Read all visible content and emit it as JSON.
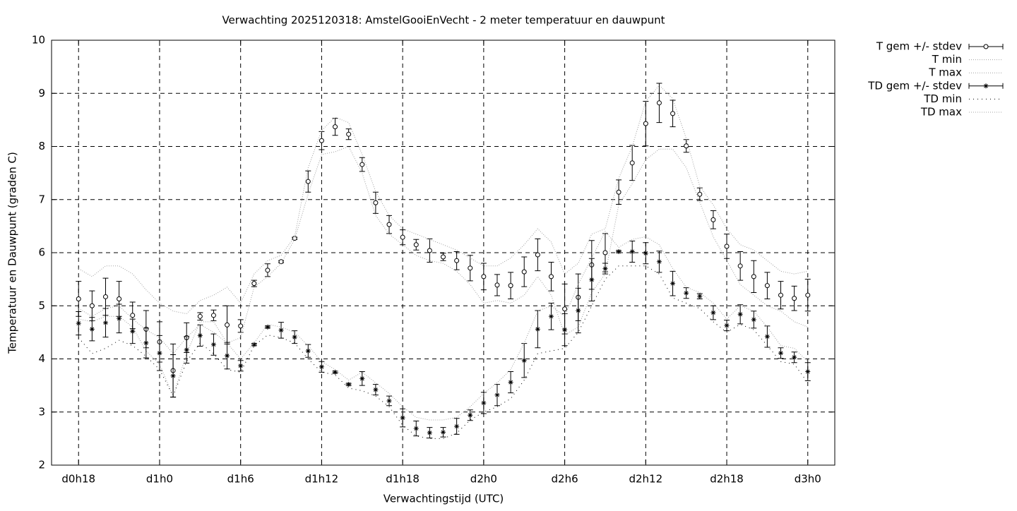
{
  "chart_data": {
    "type": "errorbar-line",
    "title": "Verwachting 2025120318: AmstelGooiEnVecht - 2 meter temperatuur en dauwpunt",
    "x_label": "Verwachtingstijd (UTC)",
    "y_label": "Temperatuur en Dauwpunt (graden C)",
    "xlim": [
      -2,
      56
    ],
    "xticks": [
      {
        "value": 0,
        "label": "d0h18"
      },
      {
        "value": 6,
        "label": "d1h0"
      },
      {
        "value": 12,
        "label": "d1h6"
      },
      {
        "value": 18,
        "label": "d1h12"
      },
      {
        "value": 24,
        "label": "d1h18"
      },
      {
        "value": 30,
        "label": "d2h0"
      },
      {
        "value": 36,
        "label": "d2h6"
      },
      {
        "value": 42,
        "label": "d2h12"
      },
      {
        "value": 48,
        "label": "d2h18"
      },
      {
        "value": 54,
        "label": "d3h0"
      }
    ],
    "ylim": [
      2,
      10
    ],
    "yticks": [
      2,
      3,
      4,
      5,
      6,
      7,
      8,
      9,
      10
    ],
    "grid": true,
    "legend": "outside-top-right",
    "x": [
      0,
      1,
      2,
      3,
      4,
      5,
      6,
      7,
      8,
      9,
      10,
      11,
      12,
      13,
      14,
      15,
      16,
      17,
      18,
      19,
      20,
      21,
      22,
      23,
      24,
      25,
      26,
      27,
      28,
      29,
      30,
      31,
      32,
      33,
      34,
      35,
      36,
      37,
      38,
      39,
      40,
      41,
      42,
      43,
      44,
      45,
      46,
      47,
      48,
      49,
      50,
      51,
      52,
      53,
      54
    ],
    "series": [
      {
        "name": "T gem +/- stdev",
        "color": "#000000",
        "marker": "circle",
        "line_style": "errorbar",
        "values": [
          5.13,
          5.0,
          5.17,
          5.13,
          4.82,
          4.56,
          4.32,
          3.78,
          4.4,
          4.8,
          4.82,
          4.64,
          4.62,
          5.42,
          5.67,
          5.83,
          6.27,
          7.34,
          8.11,
          8.37,
          8.23,
          7.66,
          6.94,
          6.53,
          6.29,
          6.15,
          6.04,
          5.92,
          5.85,
          5.71,
          5.55,
          5.39,
          5.38,
          5.64,
          5.96,
          5.55,
          4.94,
          5.16,
          5.77,
          6.0,
          7.14,
          7.69,
          8.43,
          8.82,
          8.62,
          8.01,
          7.1,
          6.62,
          6.12,
          5.75,
          5.55,
          5.38,
          5.2,
          5.14,
          5.2
        ],
        "errors": [
          0.33,
          0.28,
          0.35,
          0.33,
          0.25,
          0.35,
          0.38,
          0.5,
          0.28,
          0.07,
          0.1,
          0.36,
          0.12,
          0.06,
          0.12,
          0.02,
          0.02,
          0.2,
          0.17,
          0.16,
          0.1,
          0.13,
          0.2,
          0.17,
          0.14,
          0.1,
          0.22,
          0.07,
          0.17,
          0.24,
          0.25,
          0.2,
          0.25,
          0.28,
          0.3,
          0.27,
          0.47,
          0.44,
          0.46,
          0.36,
          0.23,
          0.33,
          0.42,
          0.37,
          0.25,
          0.12,
          0.12,
          0.17,
          0.23,
          0.27,
          0.3,
          0.25,
          0.26,
          0.23,
          0.3
        ]
      },
      {
        "name": "T min",
        "color": "#a0a0a0",
        "marker": "none",
        "line_style": "dotted",
        "values": [
          4.75,
          4.7,
          4.8,
          4.8,
          4.6,
          4.15,
          3.9,
          3.3,
          4.1,
          4.7,
          4.7,
          4.3,
          4.4,
          5.35,
          5.55,
          5.8,
          6.25,
          7.1,
          7.85,
          7.9,
          8.0,
          7.5,
          6.7,
          6.35,
          6.15,
          5.95,
          5.85,
          5.8,
          5.65,
          5.4,
          5.05,
          5.1,
          5.05,
          5.2,
          5.55,
          5.2,
          4.45,
          4.6,
          5.25,
          5.6,
          6.9,
          7.3,
          7.75,
          7.95,
          7.95,
          7.6,
          6.95,
          6.3,
          5.85,
          5.4,
          5.2,
          5.0,
          4.9,
          4.7,
          4.6
        ]
      },
      {
        "name": "T max",
        "color": "#a0a0a0",
        "marker": "none",
        "line_style": "dotted",
        "values": [
          5.7,
          5.55,
          5.75,
          5.75,
          5.6,
          5.3,
          5.05,
          4.9,
          4.85,
          5.1,
          5.2,
          5.35,
          5.05,
          5.6,
          5.85,
          5.95,
          6.3,
          7.6,
          8.3,
          8.55,
          8.45,
          7.85,
          7.15,
          6.7,
          6.45,
          6.35,
          6.25,
          6.15,
          6.05,
          5.9,
          5.75,
          5.75,
          5.9,
          6.15,
          6.45,
          6.2,
          5.6,
          5.8,
          6.35,
          6.45,
          7.4,
          8.0,
          8.85,
          9.15,
          8.9,
          8.15,
          7.25,
          6.9,
          6.45,
          6.15,
          6.05,
          5.85,
          5.65,
          5.6,
          5.65
        ]
      },
      {
        "name": "TD gem +/- stdev",
        "color": "#000000",
        "marker": "star",
        "line_style": "errorbar",
        "values": [
          4.67,
          4.56,
          4.68,
          4.76,
          4.52,
          4.3,
          4.11,
          3.68,
          4.17,
          4.44,
          4.27,
          4.06,
          3.87,
          4.27,
          4.6,
          4.54,
          4.41,
          4.15,
          3.85,
          3.75,
          3.52,
          3.63,
          3.42,
          3.21,
          2.89,
          2.69,
          2.61,
          2.62,
          2.73,
          2.94,
          3.17,
          3.32,
          3.56,
          3.97,
          4.56,
          4.8,
          4.55,
          4.91,
          5.49,
          5.7,
          6.02,
          6.02,
          5.99,
          5.83,
          5.42,
          5.24,
          5.18,
          4.87,
          4.63,
          4.84,
          4.74,
          4.42,
          4.11,
          4.03,
          3.76
        ],
        "errors": [
          0.22,
          0.22,
          0.27,
          0.27,
          0.23,
          0.28,
          0.33,
          0.4,
          0.25,
          0.2,
          0.2,
          0.25,
          0.1,
          0.02,
          0.02,
          0.15,
          0.12,
          0.12,
          0.1,
          0.02,
          0.02,
          0.13,
          0.1,
          0.09,
          0.17,
          0.14,
          0.1,
          0.09,
          0.15,
          0.1,
          0.2,
          0.2,
          0.2,
          0.32,
          0.35,
          0.25,
          0.3,
          0.42,
          0.4,
          0.1,
          0.02,
          0.2,
          0.2,
          0.2,
          0.23,
          0.1,
          0.05,
          0.13,
          0.1,
          0.18,
          0.16,
          0.2,
          0.1,
          0.1,
          0.17
        ]
      },
      {
        "name": "TD min",
        "color": "#000000",
        "marker": "none",
        "line_style": "sparse-dotted",
        "values": [
          4.4,
          4.1,
          4.2,
          4.35,
          4.25,
          4.05,
          3.8,
          3.3,
          3.95,
          4.3,
          4.1,
          3.8,
          3.75,
          4.25,
          4.45,
          4.4,
          4.3,
          4.0,
          3.75,
          3.7,
          3.45,
          3.4,
          3.3,
          3.1,
          2.75,
          2.55,
          2.5,
          2.5,
          2.6,
          2.85,
          3.0,
          3.1,
          3.25,
          3.6,
          4.1,
          4.15,
          4.2,
          4.5,
          5.0,
          5.5,
          5.75,
          5.75,
          5.75,
          5.6,
          5.15,
          5.05,
          4.95,
          4.7,
          4.5,
          4.65,
          4.55,
          4.25,
          3.95,
          3.9,
          3.55
        ]
      },
      {
        "name": "TD max",
        "color": "#a0a0a0",
        "marker": "none",
        "line_style": "dotted",
        "values": [
          4.95,
          4.8,
          4.95,
          5.0,
          4.75,
          4.55,
          4.4,
          4.1,
          4.4,
          4.65,
          4.5,
          4.3,
          4.0,
          4.3,
          4.65,
          4.6,
          4.5,
          4.25,
          3.95,
          3.8,
          3.6,
          3.75,
          3.55,
          3.35,
          3.1,
          2.9,
          2.85,
          2.85,
          2.9,
          3.1,
          3.35,
          3.55,
          3.8,
          4.3,
          4.9,
          5.0,
          4.8,
          5.4,
          5.9,
          6.4,
          6.1,
          6.25,
          6.3,
          6.15,
          5.7,
          5.35,
          5.25,
          5.05,
          4.75,
          5.0,
          4.9,
          4.6,
          4.25,
          4.2,
          3.95
        ]
      }
    ]
  }
}
